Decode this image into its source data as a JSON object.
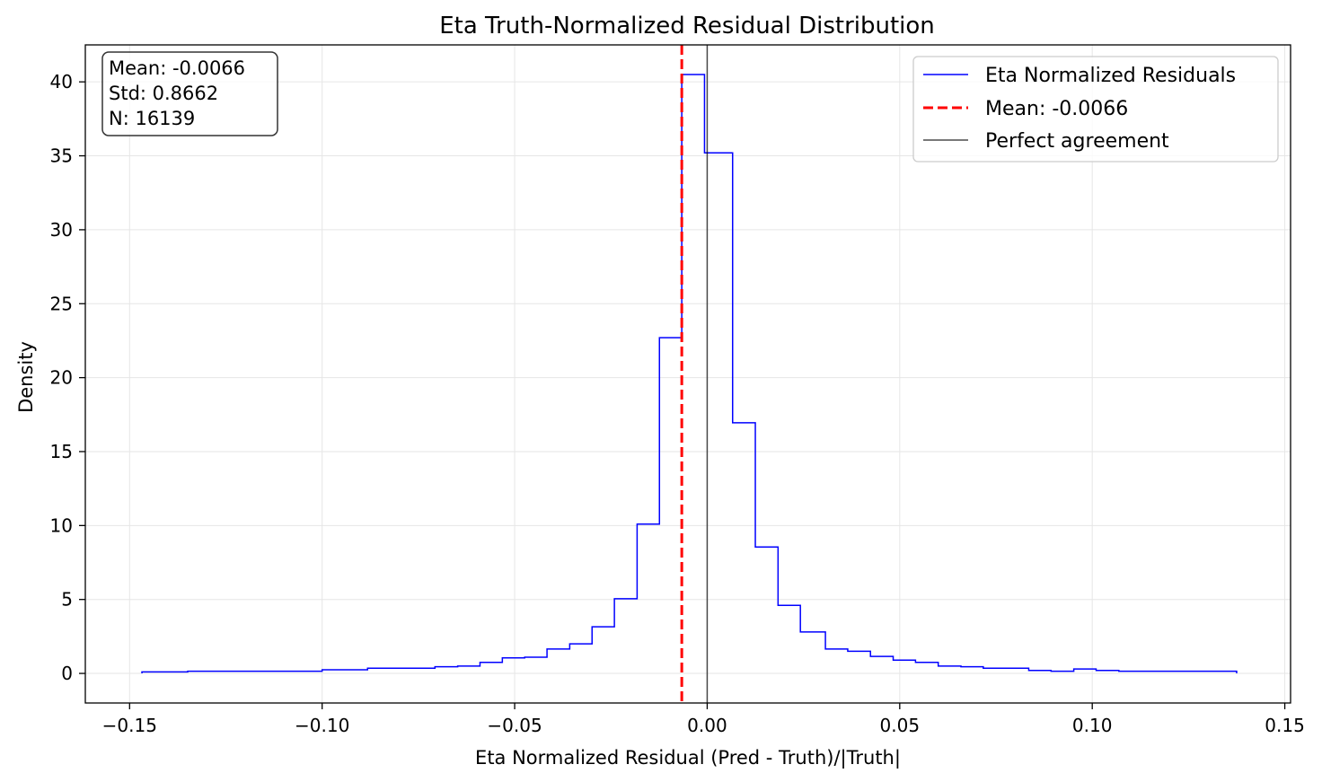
{
  "chart_data": {
    "type": "histogram",
    "title": "Eta Truth-Normalized Residual Distribution",
    "xlabel": "Eta Normalized Residual (Pred - Truth)/|Truth|",
    "ylabel": "Density",
    "xlim": [
      -0.1615,
      0.1515
    ],
    "ylim": [
      -2,
      42.5
    ],
    "xticks": [
      -0.15,
      -0.1,
      -0.05,
      0.0,
      0.05,
      0.1,
      0.15
    ],
    "xtick_labels": [
      "−0.15",
      "−0.10",
      "−0.05",
      "0.00",
      "0.05",
      "0.10",
      "0.15"
    ],
    "yticks": [
      0,
      5,
      10,
      15,
      20,
      25,
      30,
      35,
      40
    ],
    "ytick_labels": [
      "0",
      "5",
      "10",
      "15",
      "20",
      "25",
      "30",
      "35",
      "40"
    ],
    "grid": true,
    "legend_position": "top-right",
    "series": [
      {
        "name": "Eta Normalized Residuals",
        "style": "step",
        "color": "#0000ff",
        "bin_edges": [
          -0.1468,
          -0.1349,
          -0.1,
          -0.0882,
          -0.0707,
          -0.0648,
          -0.059,
          -0.0532,
          -0.0474,
          -0.0416,
          -0.0357,
          -0.0299,
          -0.0241,
          -0.0182,
          -0.0124,
          -0.0066,
          -0.0007,
          0.0066,
          0.0125,
          0.0184,
          0.0242,
          0.0307,
          0.0365,
          0.0424,
          0.0483,
          0.0541,
          0.06,
          0.0659,
          0.0717,
          0.0835,
          0.0893,
          0.0952,
          0.101,
          0.1069,
          0.1375
        ],
        "densities": [
          0.1,
          0.15,
          0.25,
          0.35,
          0.45,
          0.5,
          0.75,
          1.05,
          1.1,
          1.65,
          2.0,
          3.15,
          5.05,
          10.1,
          22.7,
          40.5,
          35.2,
          16.95,
          8.55,
          4.6,
          2.8,
          1.65,
          1.5,
          1.15,
          0.9,
          0.75,
          0.5,
          0.45,
          0.35,
          0.2,
          0.15,
          0.3,
          0.2,
          0.15
        ]
      },
      {
        "name": "Mean: -0.0066",
        "style": "vline-dashed",
        "color": "#ff0000",
        "x": -0.0066
      },
      {
        "name": "Perfect agreement",
        "style": "vline",
        "color": "#000000",
        "x": 0.0
      }
    ],
    "stats_box": {
      "lines": [
        "Mean: -0.0066",
        "Std: 0.8662",
        "N: 16139"
      ],
      "position": "top-left"
    }
  }
}
